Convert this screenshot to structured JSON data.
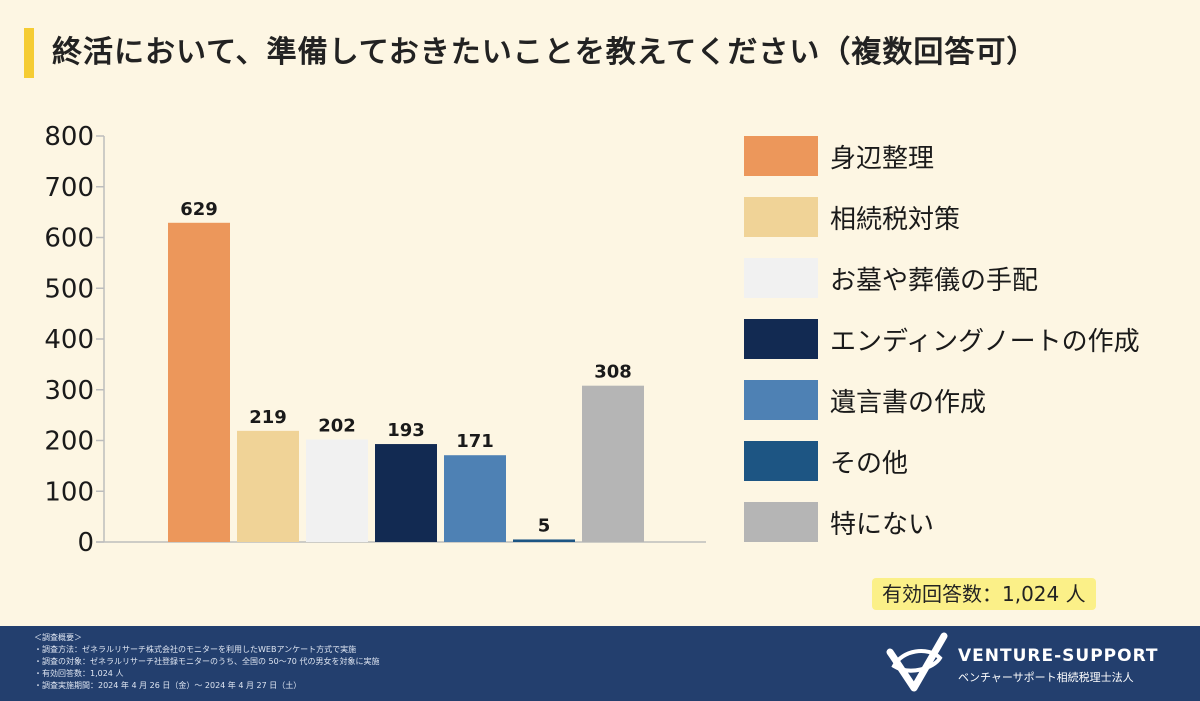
{
  "title": "終活において、準備しておきたいことを教えてください（複数回答可）",
  "chart_data": {
    "type": "bar",
    "title": "終活において、準備しておきたいことを教えてください（複数回答可）",
    "categories": [
      "身辺整理",
      "相続税対策",
      "お墓や葬儀の手配",
      "エンディングノートの作成",
      "遺言書の作成",
      "その他",
      "特にない"
    ],
    "values": [
      629,
      219,
      202,
      193,
      171,
      5,
      308
    ],
    "colors": [
      "#ec975b",
      "#f0d397",
      "#f1f1f1",
      "#122a52",
      "#4e81b4",
      "#1d5583",
      "#b5b5b5"
    ],
    "ylim": [
      0,
      800
    ],
    "yticks": [
      "0",
      "100",
      "200",
      "300",
      "400",
      "500",
      "600",
      "700",
      "800"
    ],
    "data_labels": [
      "629",
      "219",
      "202",
      "193",
      "171",
      "5",
      "308"
    ],
    "xlabel": "",
    "ylabel": "",
    "grid": false,
    "legend_position": "right"
  },
  "response_count": "有効回答数：1,024 人",
  "footer": {
    "notes": [
      "＜調査概要＞",
      "・調査方法：ゼネラルリサーチ株式会社のモニターを利用したWEBアンケート方式で実施",
      "・調査の対象：ゼネラルリサーチ社登録モニターのうち、全国の 50〜70 代の男女を対象に実施",
      "・有効回答数：1,024 人",
      "・調査実施期間：2024 年 4 月 26 日（金）〜 2024 年 4 月 27 日（土）"
    ],
    "brand_name": "VENTURE-SUPPORT",
    "brand_sub": "ベンチャーサポート相続税理士法人",
    "logo_icon": "venture-support-logo-icon"
  }
}
